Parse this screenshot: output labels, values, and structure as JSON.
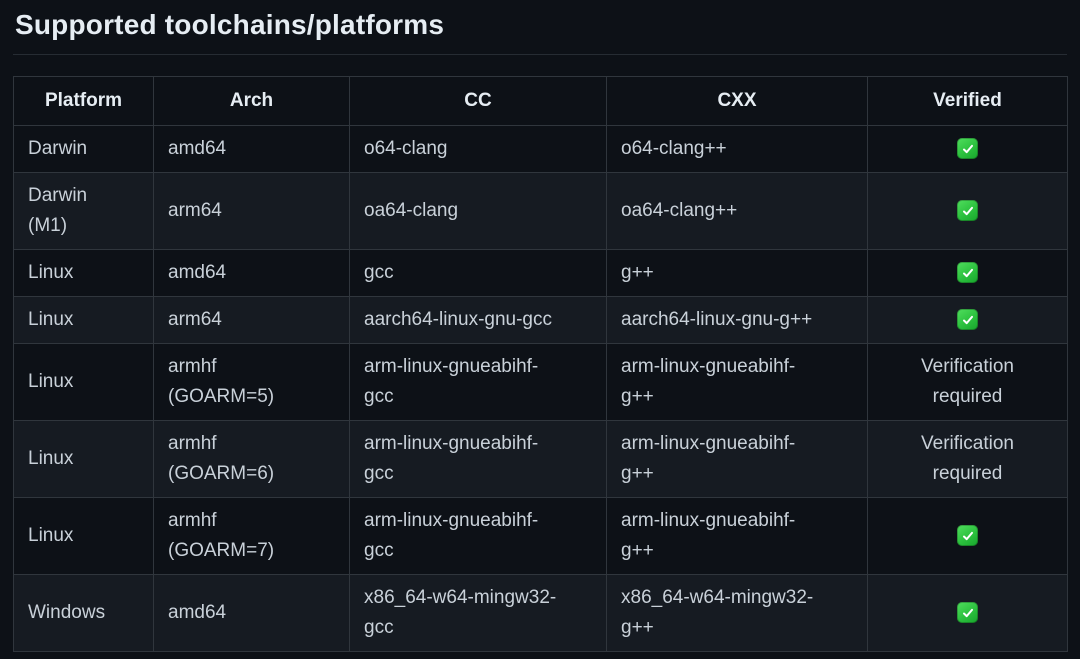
{
  "page": {
    "title": "Supported toolchains/platforms"
  },
  "colors": {
    "page_background": "#0d1117",
    "row_stripe": "#161b22",
    "table_border": "#30363d",
    "heading_text": "#e6edf3",
    "body_text": "#c9d1d9",
    "verified_green": "#2cc13e"
  },
  "table": {
    "headers": [
      "Platform",
      "Arch",
      "CC",
      "CXX",
      "Verified"
    ],
    "verified_glyph": "✅",
    "verified_icon_name": "check-mark-button-icon",
    "rows": [
      {
        "platform": "Darwin",
        "arch": "amd64",
        "cc": "o64-clang",
        "cxx": "o64-clang++",
        "verified": "✅"
      },
      {
        "platform": "Darwin\n(M1)",
        "arch": "arm64",
        "cc": "oa64-clang",
        "cxx": "oa64-clang++",
        "verified": "✅"
      },
      {
        "platform": "Linux",
        "arch": "amd64",
        "cc": "gcc",
        "cxx": "g++",
        "verified": "✅"
      },
      {
        "platform": "Linux",
        "arch": "arm64",
        "cc": "aarch64-linux-gnu-gcc",
        "cxx": "aarch64-linux-gnu-g++",
        "verified": "✅"
      },
      {
        "platform": "Linux",
        "arch": "armhf\n(GOARM=5)",
        "cc": "arm-linux-gnueabihf-\ngcc",
        "cxx": "arm-linux-gnueabihf-\ng++",
        "verified": "Verification\nrequired"
      },
      {
        "platform": "Linux",
        "arch": "armhf\n(GOARM=6)",
        "cc": "arm-linux-gnueabihf-\ngcc",
        "cxx": "arm-linux-gnueabihf-\ng++",
        "verified": "Verification\nrequired"
      },
      {
        "platform": "Linux",
        "arch": "armhf\n(GOARM=7)",
        "cc": "arm-linux-gnueabihf-\ngcc",
        "cxx": "arm-linux-gnueabihf-\ng++",
        "verified": "✅"
      },
      {
        "platform": "Windows",
        "arch": "amd64",
        "cc": "x86_64-w64-mingw32-\ngcc",
        "cxx": "x86_64-w64-mingw32-\ng++",
        "verified": "✅"
      }
    ]
  }
}
